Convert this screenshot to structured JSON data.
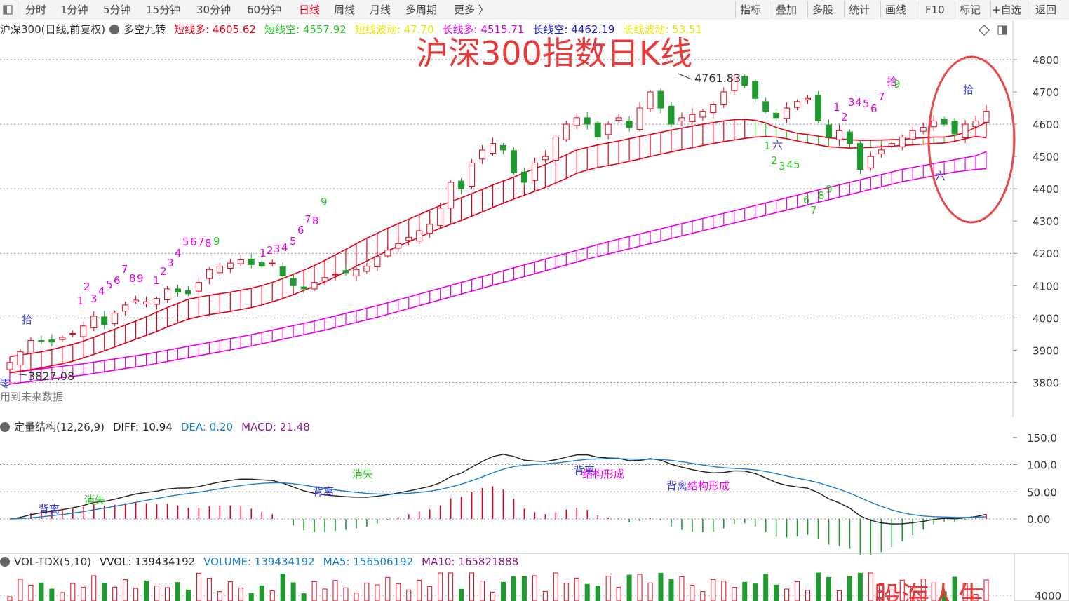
{
  "toolbar": {
    "left_items": [
      "分时",
      "1分钟",
      "5分钟",
      "15分钟",
      "30分钟",
      "60分钟",
      "日线",
      "周线",
      "月线",
      "多周期",
      "更多 〉"
    ],
    "active_item": "日线",
    "right_items": [
      "指标",
      "叠加",
      "多股",
      "统计",
      "画线",
      "F10",
      "标记",
      "+自选",
      "返回"
    ]
  },
  "main_panel": {
    "symbol": "沪深300(日线,前复权)",
    "indicator_name": "多空九转",
    "params": [
      {
        "label": "短线多:",
        "value": "4605.62",
        "color": "#e6001a"
      },
      {
        "label": "短线空:",
        "value": "4557.92",
        "color": "#27c927"
      },
      {
        "label": "短线波动:",
        "value": "47.70",
        "color": "#e8e600"
      },
      {
        "label": "长线多:",
        "value": "4515.71",
        "color": "#d800d8"
      },
      {
        "label": "长线空:",
        "value": "4462.19",
        "color": "#1a1ad8"
      },
      {
        "label": "长线波动:",
        "value": "53.51",
        "color": "#e8e600"
      }
    ],
    "title_overlay": "沪深300指数日K线",
    "high_label": "4761.83",
    "low_label": "3827.08",
    "zero_char": "零",
    "future_text": "用到未来数据",
    "yaxis_ticks": [
      "4800",
      "4700",
      "4600",
      "4500",
      "4400",
      "4300",
      "4200",
      "4100",
      "4000",
      "3900",
      "3800"
    ],
    "markers": [
      {
        "text": "拾",
        "color": "#3a3ad8",
        "x": 31,
        "y": 461
      },
      {
        "text": "1",
        "color": "#e800e8",
        "x": 110,
        "y": 434
      },
      {
        "text": "2",
        "color": "#e800e8",
        "x": 119,
        "y": 414
      },
      {
        "text": "3",
        "color": "#e800e8",
        "x": 129,
        "y": 431
      },
      {
        "text": "4",
        "color": "#e800e8",
        "x": 140,
        "y": 420
      },
      {
        "text": "5",
        "color": "#e800e8",
        "x": 151,
        "y": 411
      },
      {
        "text": "6",
        "color": "#e800e8",
        "x": 162,
        "y": 405
      },
      {
        "text": "7",
        "color": "#e800e8",
        "x": 173,
        "y": 389
      },
      {
        "text": "8",
        "color": "#e800e8",
        "x": 184,
        "y": 402
      },
      {
        "text": "9",
        "color": "#e800e8",
        "x": 195,
        "y": 402
      },
      {
        "text": "1",
        "color": "#e800e8",
        "x": 218,
        "y": 405
      },
      {
        "text": "2",
        "color": "#e800e8",
        "x": 228,
        "y": 392
      },
      {
        "text": "3",
        "color": "#e800e8",
        "x": 238,
        "y": 380
      },
      {
        "text": "4",
        "color": "#e800e8",
        "x": 249,
        "y": 366
      },
      {
        "text": "5",
        "color": "#e800e8",
        "x": 260,
        "y": 350
      },
      {
        "text": "6",
        "color": "#e800e8",
        "x": 271,
        "y": 350
      },
      {
        "text": "7",
        "color": "#e800e8",
        "x": 282,
        "y": 350
      },
      {
        "text": "8",
        "color": "#e800e8",
        "x": 292,
        "y": 352
      },
      {
        "text": "9",
        "color": "#27c927",
        "x": 304,
        "y": 349
      },
      {
        "text": "1",
        "color": "#e800e8",
        "x": 370,
        "y": 366
      },
      {
        "text": "2",
        "color": "#e800e8",
        "x": 380,
        "y": 362
      },
      {
        "text": "3",
        "color": "#e800e8",
        "x": 390,
        "y": 360
      },
      {
        "text": "4",
        "color": "#e800e8",
        "x": 401,
        "y": 358
      },
      {
        "text": "5",
        "color": "#e800e8",
        "x": 413,
        "y": 349
      },
      {
        "text": "6",
        "color": "#e800e8",
        "x": 424,
        "y": 333
      },
      {
        "text": "7",
        "color": "#e800e8",
        "x": 434,
        "y": 318
      },
      {
        "text": "8",
        "color": "#e800e8",
        "x": 445,
        "y": 320
      },
      {
        "text": "9",
        "color": "#27c927",
        "x": 457,
        "y": 293
      },
      {
        "text": "1",
        "color": "#e800e8",
        "x": 1188,
        "y": 158
      },
      {
        "text": "2",
        "color": "#e800e8",
        "x": 1199,
        "y": 172
      },
      {
        "text": "3",
        "color": "#e800e8",
        "x": 1209,
        "y": 151
      },
      {
        "text": "4",
        "color": "#e800e8",
        "x": 1219,
        "y": 151
      },
      {
        "text": "5",
        "color": "#e800e8",
        "x": 1230,
        "y": 153
      },
      {
        "text": "6",
        "color": "#e800e8",
        "x": 1241,
        "y": 160
      },
      {
        "text": "7",
        "color": "#e800e8",
        "x": 1252,
        "y": 143
      },
      {
        "text": "拾",
        "color": "#e800e8",
        "x": 1264,
        "y": 121
      },
      {
        "text": "9",
        "color": "#27c927",
        "x": 1274,
        "y": 125
      },
      {
        "text": "1",
        "color": "#27c927",
        "x": 1089,
        "y": 213
      },
      {
        "text": "六",
        "color": "#3a3ad8",
        "x": 1101,
        "y": 212
      },
      {
        "text": "2",
        "color": "#27c927",
        "x": 1099,
        "y": 234
      },
      {
        "text": "3",
        "color": "#27c927",
        "x": 1110,
        "y": 242
      },
      {
        "text": "4",
        "color": "#27c927",
        "x": 1121,
        "y": 240
      },
      {
        "text": "5",
        "color": "#27c927",
        "x": 1131,
        "y": 240
      },
      {
        "text": "6",
        "color": "#27c927",
        "x": 1145,
        "y": 290
      },
      {
        "text": "7",
        "color": "#27c927",
        "x": 1155,
        "y": 305
      },
      {
        "text": "8",
        "color": "#27c927",
        "x": 1166,
        "y": 284
      },
      {
        "text": "9",
        "color": "#27c927",
        "x": 1177,
        "y": 275
      },
      {
        "text": "六",
        "color": "#3a3ad8",
        "x": 1333,
        "y": 256
      },
      {
        "text": "拾",
        "color": "#3a3ad8",
        "x": 1373,
        "y": 133
      }
    ]
  },
  "macd_panel": {
    "title": "定量结构(12,26,9)",
    "params": [
      {
        "label": "DIFF:",
        "value": "10.94",
        "color": "#222222"
      },
      {
        "label": "DEA:",
        "value": "0.20",
        "color": "#1a7fd0"
      },
      {
        "label": "MACD:",
        "value": "21.48",
        "color": "#8a1a8a"
      }
    ],
    "yaxis_ticks": [
      "150.0",
      "100.0",
      "50.00",
      "0.00"
    ],
    "annotations": [
      {
        "text": "背离",
        "color": "#3a3ad8",
        "x": 55,
        "y": 731
      },
      {
        "text": "消失",
        "color": "#27c927",
        "x": 120,
        "y": 718
      },
      {
        "text": "背离",
        "color": "#3a3ad8",
        "x": 446,
        "y": 706
      },
      {
        "text": "消失",
        "color": "#27c927",
        "x": 502,
        "y": 681
      },
      {
        "text": "背离",
        "color": "#3a3ad8",
        "x": 818,
        "y": 676
      },
      {
        "text": "结构形成",
        "color": "#e800e8",
        "x": 830,
        "y": 681
      },
      {
        "text": "背离",
        "color": "#3a3ad8",
        "x": 950,
        "y": 698
      },
      {
        "text": "结构形成",
        "color": "#e800e8",
        "x": 980,
        "y": 698
      }
    ]
  },
  "vol_panel": {
    "title": "VOL-TDX(5,10)",
    "params": [
      {
        "label": "VVOL:",
        "value": "139434192",
        "color": "#222222"
      },
      {
        "label": "VOLUME:",
        "value": "139434192",
        "color": "#1a7fd0"
      },
      {
        "label": "MA5:",
        "value": "156506192",
        "color": "#1a7fd0"
      },
      {
        "label": "MA10:",
        "value": "165821888",
        "color": "#8a1a8a"
      }
    ],
    "yaxis_tick": "4000",
    "watermark": "股海人生…"
  },
  "colors": {
    "up": "#e6001a",
    "down": "#1e9a2e",
    "short_band_up": "#e6001a",
    "short_band_down": "#27e027",
    "long_band": "#e800e8",
    "circle": "#e84848"
  },
  "chart_data": {
    "type": "candlestick",
    "title": "沪深300指数日K线",
    "ylim": [
      3750,
      4830
    ],
    "y_high": 4761.83,
    "y_low": 3827.08,
    "series": [
      {
        "name": "短线多",
        "values": [
          3880,
          3885,
          3890,
          3895,
          3902,
          3910,
          3918,
          3928,
          3940,
          3953,
          3965,
          3978,
          3990,
          4003,
          4018,
          4032,
          4045,
          4058,
          4064,
          4070,
          4075,
          4080,
          4086,
          4092,
          4100,
          4110,
          4122,
          4135,
          4148,
          4162,
          4178,
          4195,
          4212,
          4230,
          4247,
          4262,
          4278,
          4292,
          4306,
          4320,
          4334,
          4348,
          4360,
          4372,
          4385,
          4398,
          4412,
          4424,
          4436,
          4450,
          4462,
          4475,
          4490,
          4505,
          4520,
          4528,
          4536,
          4542,
          4548,
          4555,
          4562,
          4568,
          4575,
          4582,
          4588,
          4594,
          4600,
          4605,
          4610,
          4614,
          4615,
          4612,
          4604,
          4590,
          4580,
          4572,
          4568,
          4563,
          4558,
          4555,
          4552,
          4550,
          4550,
          4551,
          4552,
          4553,
          4556,
          4558,
          4560,
          4560,
          4565,
          4575,
          4590,
          4605
        ]
      },
      {
        "name": "短线空",
        "values": [
          3830,
          3835,
          3840,
          3845,
          3852,
          3858,
          3866,
          3876,
          3887,
          3898,
          3910,
          3922,
          3934,
          3946,
          3958,
          3972,
          3984,
          3996,
          4004,
          4010,
          4015,
          4020,
          4026,
          4032,
          4040,
          4050,
          4060,
          4072,
          4085,
          4098,
          4112,
          4127,
          4143,
          4160,
          4176,
          4192,
          4208,
          4222,
          4236,
          4250,
          4264,
          4278,
          4290,
          4302,
          4315,
          4328,
          4342,
          4355,
          4368,
          4380,
          4392,
          4404,
          4418,
          4432,
          4448,
          4458,
          4466,
          4472,
          4478,
          4485,
          4492,
          4500,
          4507,
          4514,
          4521,
          4527,
          4534,
          4540,
          4546,
          4551,
          4556,
          4560,
          4562,
          4560,
          4555,
          4548,
          4542,
          4536,
          4530,
          4528,
          4526,
          4527,
          4528,
          4530,
          4532,
          4534,
          4536,
          4538,
          4540,
          4542,
          4547,
          4555,
          4562,
          4558
        ]
      },
      {
        "name": "长线多",
        "values": [
          3830,
          3834,
          3838,
          3842,
          3846,
          3850,
          3854,
          3858,
          3863,
          3868,
          3873,
          3878,
          3883,
          3888,
          3894,
          3900,
          3906,
          3912,
          3918,
          3924,
          3930,
          3936,
          3942,
          3948,
          3955,
          3962,
          3969,
          3976,
          3983,
          3990,
          3998,
          4006,
          4014,
          4022,
          4030,
          4038,
          4047,
          4056,
          4065,
          4074,
          4083,
          4092,
          4101,
          4110,
          4119,
          4128,
          4137,
          4146,
          4155,
          4164,
          4173,
          4182,
          4191,
          4200,
          4209,
          4218,
          4227,
          4236,
          4244,
          4252,
          4260,
          4268,
          4276,
          4284,
          4292,
          4300,
          4308,
          4316,
          4324,
          4332,
          4340,
          4348,
          4356,
          4364,
          4372,
          4380,
          4388,
          4396,
          4404,
          4412,
          4420,
          4428,
          4436,
          4444,
          4452,
          4460,
          4466,
          4472,
          4478,
          4484,
          4490,
          4496,
          4502,
          4515
        ]
      },
      {
        "name": "长线空",
        "values": [
          3795,
          3799,
          3803,
          3807,
          3811,
          3815,
          3819,
          3823,
          3828,
          3833,
          3838,
          3843,
          3848,
          3853,
          3859,
          3865,
          3871,
          3877,
          3883,
          3889,
          3895,
          3901,
          3907,
          3913,
          3920,
          3927,
          3934,
          3941,
          3948,
          3955,
          3962,
          3970,
          3978,
          3986,
          3994,
          4002,
          4011,
          4020,
          4029,
          4038,
          4047,
          4056,
          4065,
          4074,
          4083,
          4092,
          4101,
          4110,
          4119,
          4128,
          4137,
          4146,
          4155,
          4164,
          4173,
          4182,
          4190,
          4198,
          4206,
          4214,
          4222,
          4230,
          4238,
          4246,
          4254,
          4262,
          4270,
          4278,
          4286,
          4294,
          4302,
          4310,
          4318,
          4326,
          4334,
          4342,
          4350,
          4358,
          4366,
          4374,
          4382,
          4390,
          4398,
          4406,
          4414,
          4422,
          4428,
          4434,
          4440,
          4446,
          4452,
          4456,
          4460,
          4462
        ]
      }
    ],
    "close": [
      3862,
      3895,
      3930,
      3928,
      3925,
      3940,
      3952,
      3975,
      4005,
      3980,
      4015,
      4040,
      4055,
      4050,
      4060,
      4090,
      4080,
      4075,
      4110,
      4150,
      4160,
      4170,
      4180,
      4165,
      4160,
      4170,
      4130,
      4100,
      4090,
      4110,
      4125,
      4135,
      4140,
      4150,
      4160,
      4190,
      4210,
      4230,
      4250,
      4270,
      4290,
      4340,
      4420,
      4400,
      4480,
      4520,
      4540,
      4520,
      4450,
      4420,
      4480,
      4500,
      4560,
      4600,
      4620,
      4600,
      4560,
      4600,
      4620,
      4590,
      4650,
      4700,
      4650,
      4600,
      4620,
      4630,
      4640,
      4660,
      4700,
      4740,
      4720,
      4680,
      4640,
      4620,
      4650,
      4670,
      4680,
      4610,
      4560,
      4580,
      4540,
      4460,
      4500,
      4520,
      4540,
      4560,
      4580,
      4590,
      4610,
      4600,
      4570,
      4600,
      4610,
      4640
    ]
  }
}
